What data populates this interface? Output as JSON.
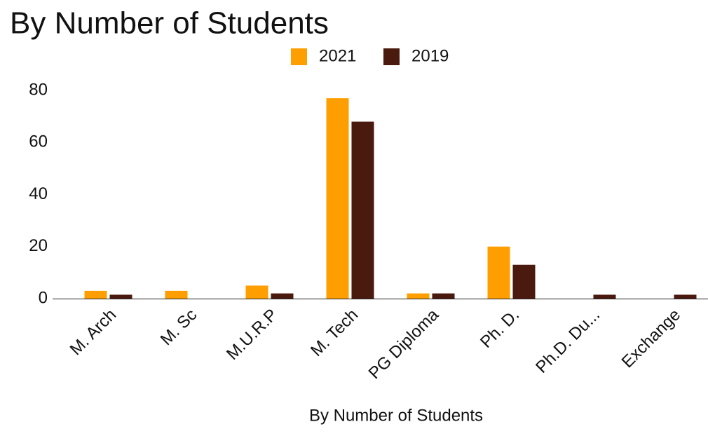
{
  "chart_data": {
    "type": "bar",
    "title": "By Number of Students",
    "x_label": "By Number of Students",
    "categories": [
      "M. Arch",
      "M. Sc",
      "M.U.R.P",
      "M. Tech",
      "PG Diploma",
      "Ph. D.",
      "Ph.D. Du...",
      "Exchange"
    ],
    "series": [
      {
        "name": "2021",
        "color": "#ff9e00",
        "values": [
          3,
          3,
          5,
          77,
          2,
          20,
          0,
          0
        ]
      },
      {
        "name": "2019",
        "color": "#4a1a0f",
        "values": [
          1.5,
          0,
          2,
          68,
          2,
          13,
          1.5,
          1.5
        ]
      }
    ],
    "ylim": [
      0,
      80
    ],
    "yticks": [
      0,
      20,
      40,
      60,
      80
    ],
    "grid": false,
    "legend": "top"
  }
}
